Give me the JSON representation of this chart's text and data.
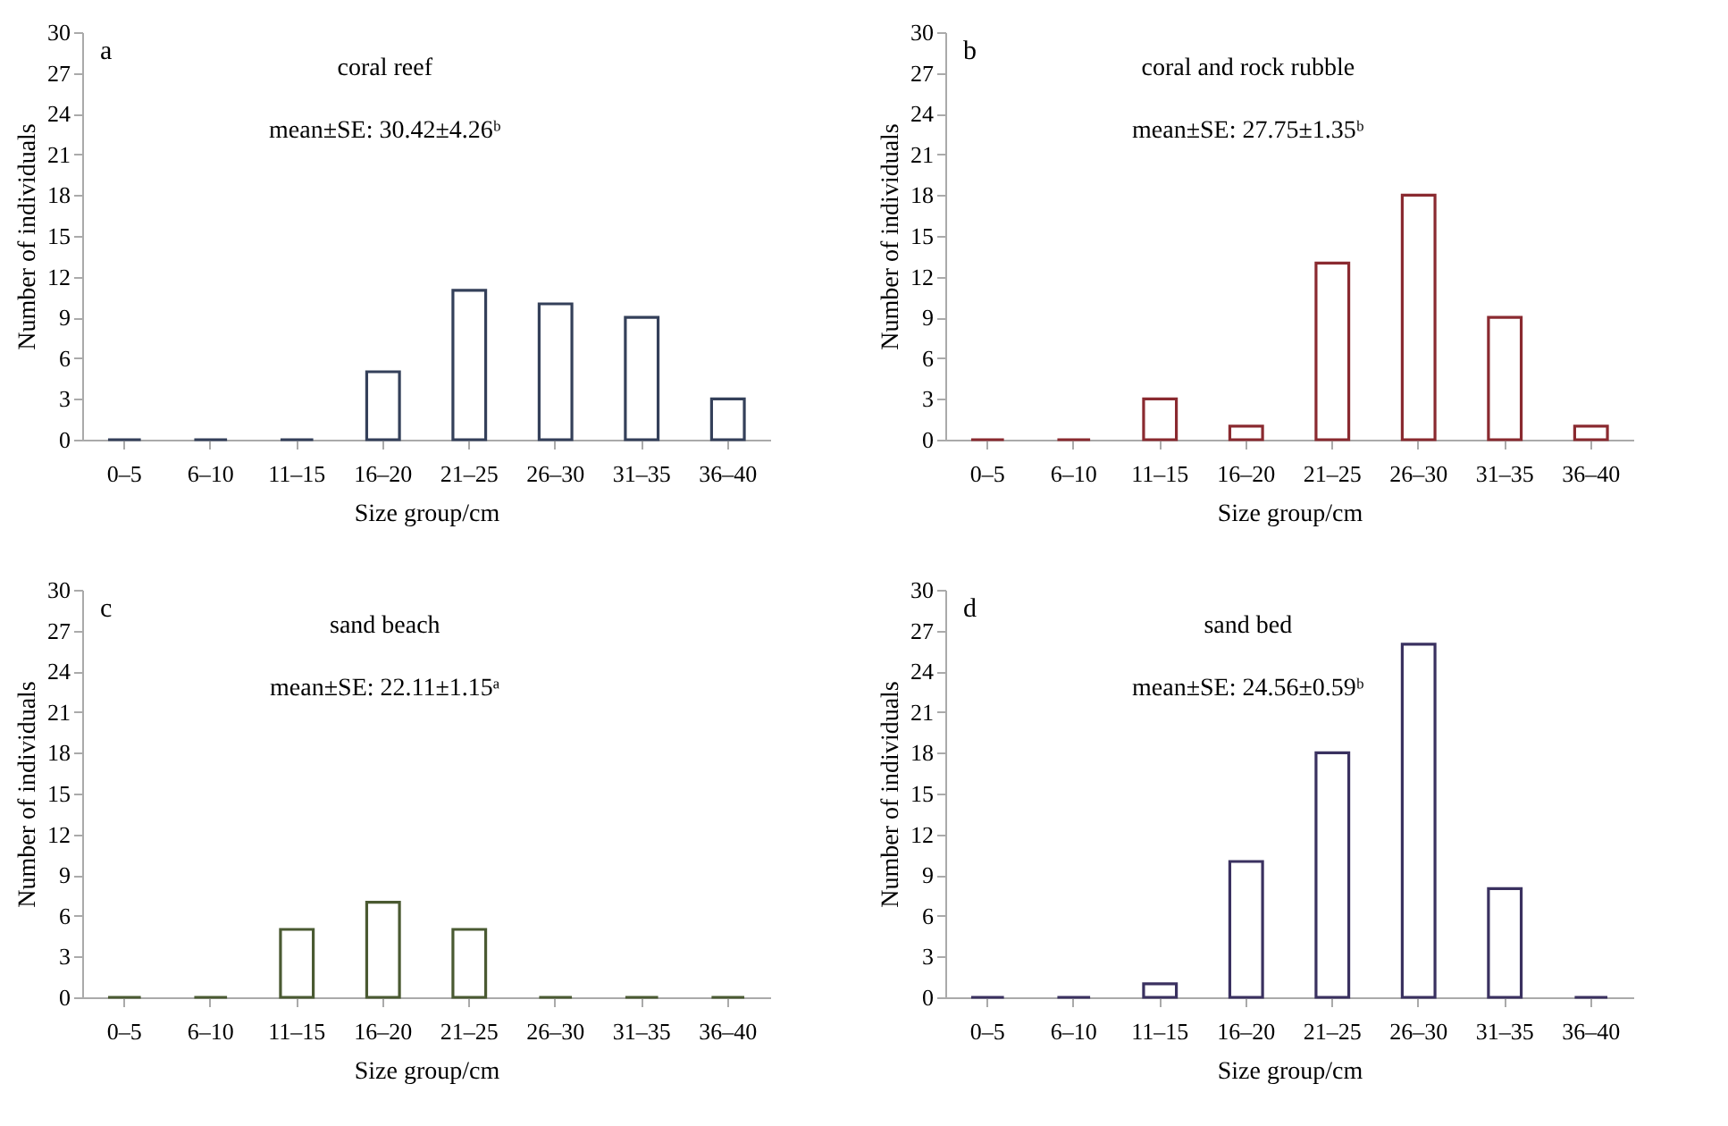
{
  "chart_data": [
    {
      "type": "bar",
      "title": "coral reef",
      "subtitle": "mean±SE: 30.42±4.26ᵇ",
      "annotations": [
        "a"
      ],
      "xlabel": "Size group/cm",
      "ylabel": "Number of individuals",
      "categories": [
        "0–5",
        "6–10",
        "11–15",
        "16–20",
        "21–25",
        "26–30",
        "31–35",
        "36–40"
      ],
      "values": [
        0,
        0,
        0,
        5,
        11,
        10,
        9,
        3
      ],
      "color": "#34405a",
      "ylim": [
        0,
        30
      ],
      "yticks": [
        0,
        3,
        6,
        9,
        12,
        15,
        18,
        21,
        24,
        27,
        30
      ]
    },
    {
      "type": "bar",
      "title": "coral and rock rubble",
      "subtitle": "mean±SE: 27.75±1.35ᵇ",
      "annotations": [
        "b"
      ],
      "xlabel": "Size group/cm",
      "ylabel": "Number of individuals",
      "categories": [
        "0–5",
        "6–10",
        "11–15",
        "16–20",
        "21–25",
        "26–30",
        "31–35",
        "36–40"
      ],
      "values": [
        0,
        0,
        3,
        1,
        13,
        18,
        9,
        1
      ],
      "color": "#8a2a30",
      "ylim": [
        0,
        30
      ],
      "yticks": [
        0,
        3,
        6,
        9,
        12,
        15,
        18,
        21,
        24,
        27,
        30
      ]
    },
    {
      "type": "bar",
      "title": "sand beach",
      "subtitle": "mean±SE: 22.11±1.15ᵃ",
      "annotations": [
        "c"
      ],
      "xlabel": "Size group/cm",
      "ylabel": "Number of individuals",
      "categories": [
        "0–5",
        "6–10",
        "11–15",
        "16–20",
        "21–25",
        "26–30",
        "31–35",
        "36–40"
      ],
      "values": [
        0,
        0,
        5,
        7,
        5,
        0,
        0,
        0
      ],
      "color": "#4a5a32",
      "ylim": [
        0,
        30
      ],
      "yticks": [
        0,
        3,
        6,
        9,
        12,
        15,
        18,
        21,
        24,
        27,
        30
      ]
    },
    {
      "type": "bar",
      "title": "sand bed",
      "subtitle": "mean±SE: 24.56±0.59ᵇ",
      "annotations": [
        "d"
      ],
      "xlabel": "Size group/cm",
      "ylabel": "Number of individuals",
      "categories": [
        "0–5",
        "6–10",
        "11–15",
        "16–20",
        "21–25",
        "26–30",
        "31–35",
        "36–40"
      ],
      "values": [
        0,
        0,
        1,
        10,
        18,
        26,
        8,
        0
      ],
      "color": "#3a3160",
      "ylim": [
        0,
        30
      ],
      "yticks": [
        0,
        3,
        6,
        9,
        12,
        15,
        18,
        21,
        24,
        27,
        30
      ]
    }
  ]
}
